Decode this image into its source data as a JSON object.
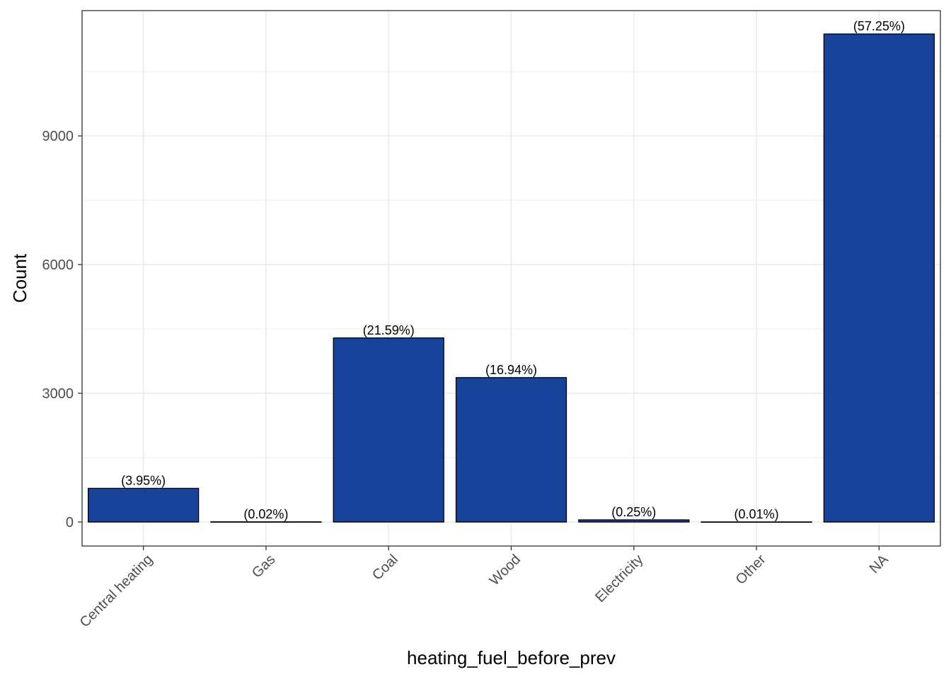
{
  "chart_data": {
    "type": "bar",
    "title": "",
    "xlabel": "heating_fuel_before_prev",
    "ylabel": "Count",
    "categories": [
      "Central heating",
      "Gas",
      "Coal",
      "Wood",
      "Electricity",
      "Other",
      "NA"
    ],
    "values": [
      785,
      4,
      4290,
      3366,
      50,
      2,
      11375
    ],
    "labels": [
      "(3.95%)",
      "(0.02%)",
      "(21.59%)",
      "(16.94%)",
      "(0.25%)",
      "(0.01%)",
      "(57.25%)"
    ],
    "ylim": [
      -560,
      11920
    ],
    "yticks": [
      0,
      3000,
      6000,
      9000
    ],
    "grid": true,
    "legend": "none",
    "colors": {
      "bar_fill": "#17449a",
      "bar_stroke": "#000000",
      "grid": "#ebebeb",
      "panel_border": "#333333"
    }
  }
}
